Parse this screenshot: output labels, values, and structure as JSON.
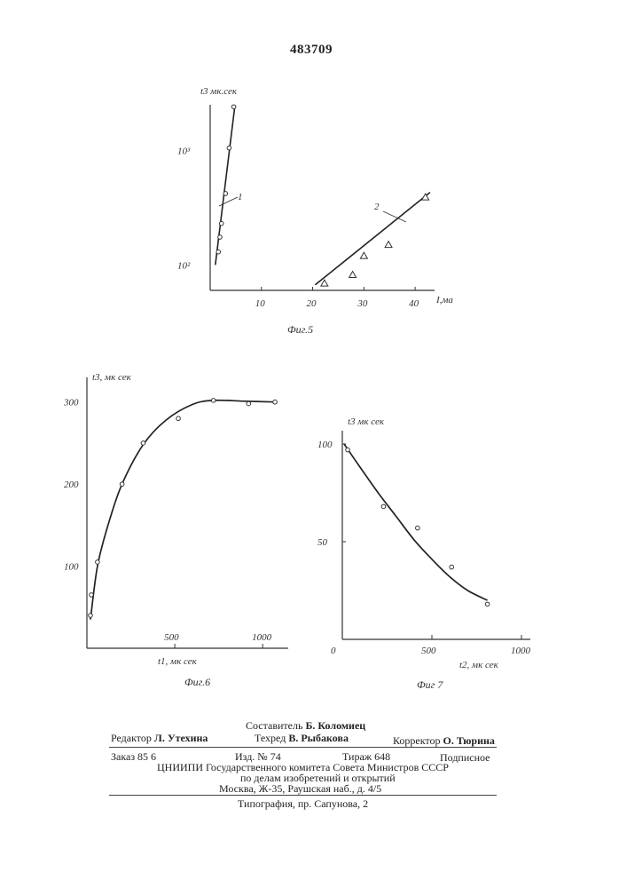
{
  "page_number": "483709",
  "chart_data": [
    {
      "id": "fig5",
      "type": "scatter",
      "caption": "Фиг.5",
      "ylabel": "t3 мк.сек",
      "xlabel": "I,ма",
      "y_scale": "log",
      "xlim": [
        0,
        45
      ],
      "ylim": [
        60,
        2500
      ],
      "x_ticks": [
        "10",
        "20",
        "30",
        "40"
      ],
      "y_ticks": [
        "10³",
        "10²"
      ],
      "y_tick_values": [
        1000,
        100
      ],
      "series": [
        {
          "name": "1",
          "marker": "circle",
          "points": [
            {
              "x": 1.6,
              "y": 130
            },
            {
              "x": 1.9,
              "y": 175
            },
            {
              "x": 2.2,
              "y": 230
            },
            {
              "x": 3.0,
              "y": 420
            },
            {
              "x": 3.7,
              "y": 1050
            },
            {
              "x": 4.6,
              "y": 2400
            }
          ],
          "fit_line": [
            {
              "x": 1.0,
              "y": 100
            },
            {
              "x": 4.8,
              "y": 2400
            }
          ]
        },
        {
          "name": "2",
          "marker": "triangle",
          "points": [
            {
              "x": 22.3,
              "y": 69
            },
            {
              "x": 27.8,
              "y": 82
            },
            {
              "x": 30.0,
              "y": 120
            },
            {
              "x": 34.8,
              "y": 150
            },
            {
              "x": 42.0,
              "y": 390
            }
          ],
          "fit_line": [
            {
              "x": 20.5,
              "y": 67
            },
            {
              "x": 42.9,
              "y": 430
            }
          ]
        }
      ]
    },
    {
      "id": "fig6",
      "type": "line",
      "caption": "Фиг.6",
      "ylabel": "t3, мк сек",
      "xlabel": "t1, мк сек",
      "xlim": [
        0,
        1100
      ],
      "ylim": [
        0,
        330
      ],
      "x_ticks": [
        "500",
        "1000"
      ],
      "x_tick_values": [
        500,
        1000
      ],
      "y_ticks": [
        "300",
        "200",
        "100"
      ],
      "y_tick_values": [
        300,
        200,
        100
      ],
      "points": [
        {
          "x": 20,
          "y": 40
        },
        {
          "x": 25,
          "y": 65
        },
        {
          "x": 60,
          "y": 105
        },
        {
          "x": 200,
          "y": 200
        },
        {
          "x": 320,
          "y": 250
        },
        {
          "x": 520,
          "y": 280
        },
        {
          "x": 720,
          "y": 302
        },
        {
          "x": 920,
          "y": 298
        },
        {
          "x": 1070,
          "y": 300
        }
      ],
      "curve": [
        {
          "x": 20,
          "y": 35
        },
        {
          "x": 60,
          "y": 100
        },
        {
          "x": 120,
          "y": 150
        },
        {
          "x": 200,
          "y": 200
        },
        {
          "x": 320,
          "y": 248
        },
        {
          "x": 450,
          "y": 278
        },
        {
          "x": 600,
          "y": 297
        },
        {
          "x": 720,
          "y": 302
        },
        {
          "x": 900,
          "y": 301
        },
        {
          "x": 1070,
          "y": 300
        }
      ]
    },
    {
      "id": "fig7",
      "type": "line",
      "caption": "Фиг 7",
      "ylabel": "t3 мк сек",
      "xlabel": "t2, мк сек",
      "xlim": [
        0,
        1000
      ],
      "ylim": [
        0,
        110
      ],
      "x_ticks": [
        "0",
        "500",
        "1000"
      ],
      "x_tick_values": [
        0,
        500,
        1000
      ],
      "y_ticks": [
        "100",
        "50"
      ],
      "y_tick_values": [
        100,
        50
      ],
      "points": [
        {
          "x": 30,
          "y": 97
        },
        {
          "x": 230,
          "y": 68
        },
        {
          "x": 420,
          "y": 57
        },
        {
          "x": 610,
          "y": 37
        },
        {
          "x": 810,
          "y": 18
        }
      ],
      "curve": [
        {
          "x": 10,
          "y": 100
        },
        {
          "x": 100,
          "y": 88
        },
        {
          "x": 200,
          "y": 75
        },
        {
          "x": 300,
          "y": 63
        },
        {
          "x": 400,
          "y": 51
        },
        {
          "x": 500,
          "y": 41
        },
        {
          "x": 600,
          "y": 32
        },
        {
          "x": 700,
          "y": 25
        },
        {
          "x": 810,
          "y": 20
        }
      ]
    }
  ],
  "credits": {
    "compiler_label": "Составитель",
    "compiler_name": "Б. Коломиец",
    "editor_label": "Редактор",
    "editor_name": "Л. Утехина",
    "techred_label": "Техред",
    "techred_name": "В. Рыбакова",
    "corrector_label": "Корректор",
    "corrector_name": "О. Тюрина",
    "order": "Заказ  85 6",
    "edition": "Изд.  №  74",
    "circulation": "Тираж  648",
    "subscription": "Подписное",
    "org_line1": "ЦНИИПИ  Государственного  комитета  Совета  Министров  СССР",
    "org_line2": "по  делам  изобретений  и  открытий",
    "address": "Москва,  Ж-35,  Раушская  наб.,  д.  4/5",
    "printer": "Типография,  пр.  Сапунова,  2"
  }
}
